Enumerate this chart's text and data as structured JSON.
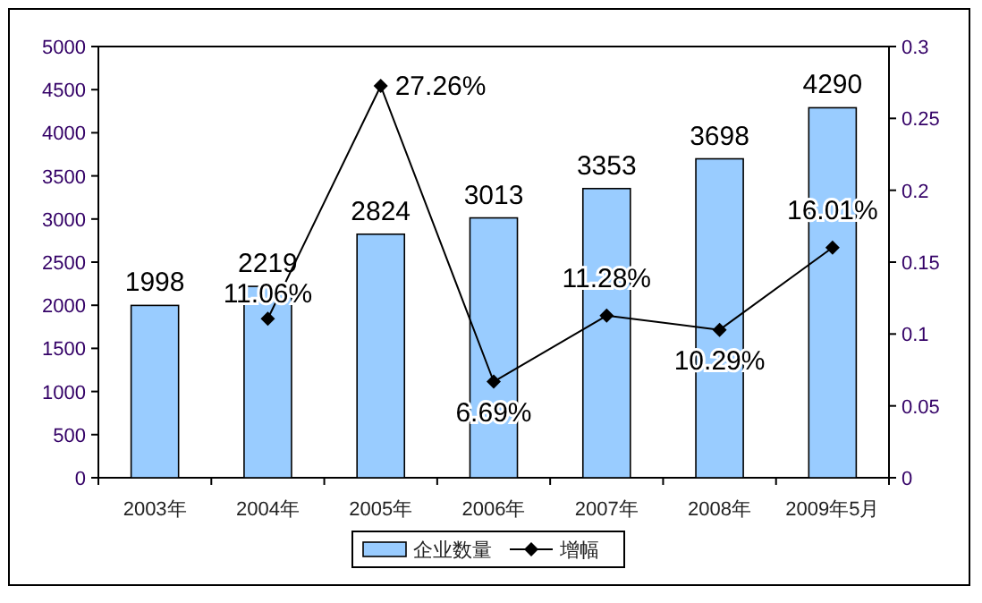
{
  "chart_data": {
    "type": "bar",
    "categories": [
      "2003年",
      "2004年",
      "2005年",
      "2006年",
      "2007年",
      "2008年",
      "2009年5月"
    ],
    "series": [
      {
        "name": "企业数量",
        "color": "#99ccff",
        "values": [
          1998,
          2219,
          2824,
          3013,
          3353,
          3698,
          4290
        ]
      },
      {
        "name": "增幅",
        "type": "line",
        "axis": "y2",
        "color": "#000000",
        "marker": "diamond",
        "values": [
          null,
          0.1106,
          0.2726,
          0.0669,
          0.1128,
          0.1029,
          0.1601
        ],
        "value_labels": [
          null,
          "11.06%",
          "27.26%",
          "6.69%",
          "11.28%",
          "10.29%",
          "16.01%"
        ]
      }
    ],
    "ylim": [
      0,
      5000
    ],
    "yticks": [
      0,
      500,
      1000,
      1500,
      2000,
      2500,
      3000,
      3500,
      4000,
      4500,
      5000
    ],
    "y2lim": [
      0,
      0.3
    ],
    "y2ticks": [
      0,
      0.05,
      0.1,
      0.15,
      0.2,
      0.25,
      0.3
    ],
    "data_labels": true,
    "legend": "bottom",
    "grid": false
  }
}
